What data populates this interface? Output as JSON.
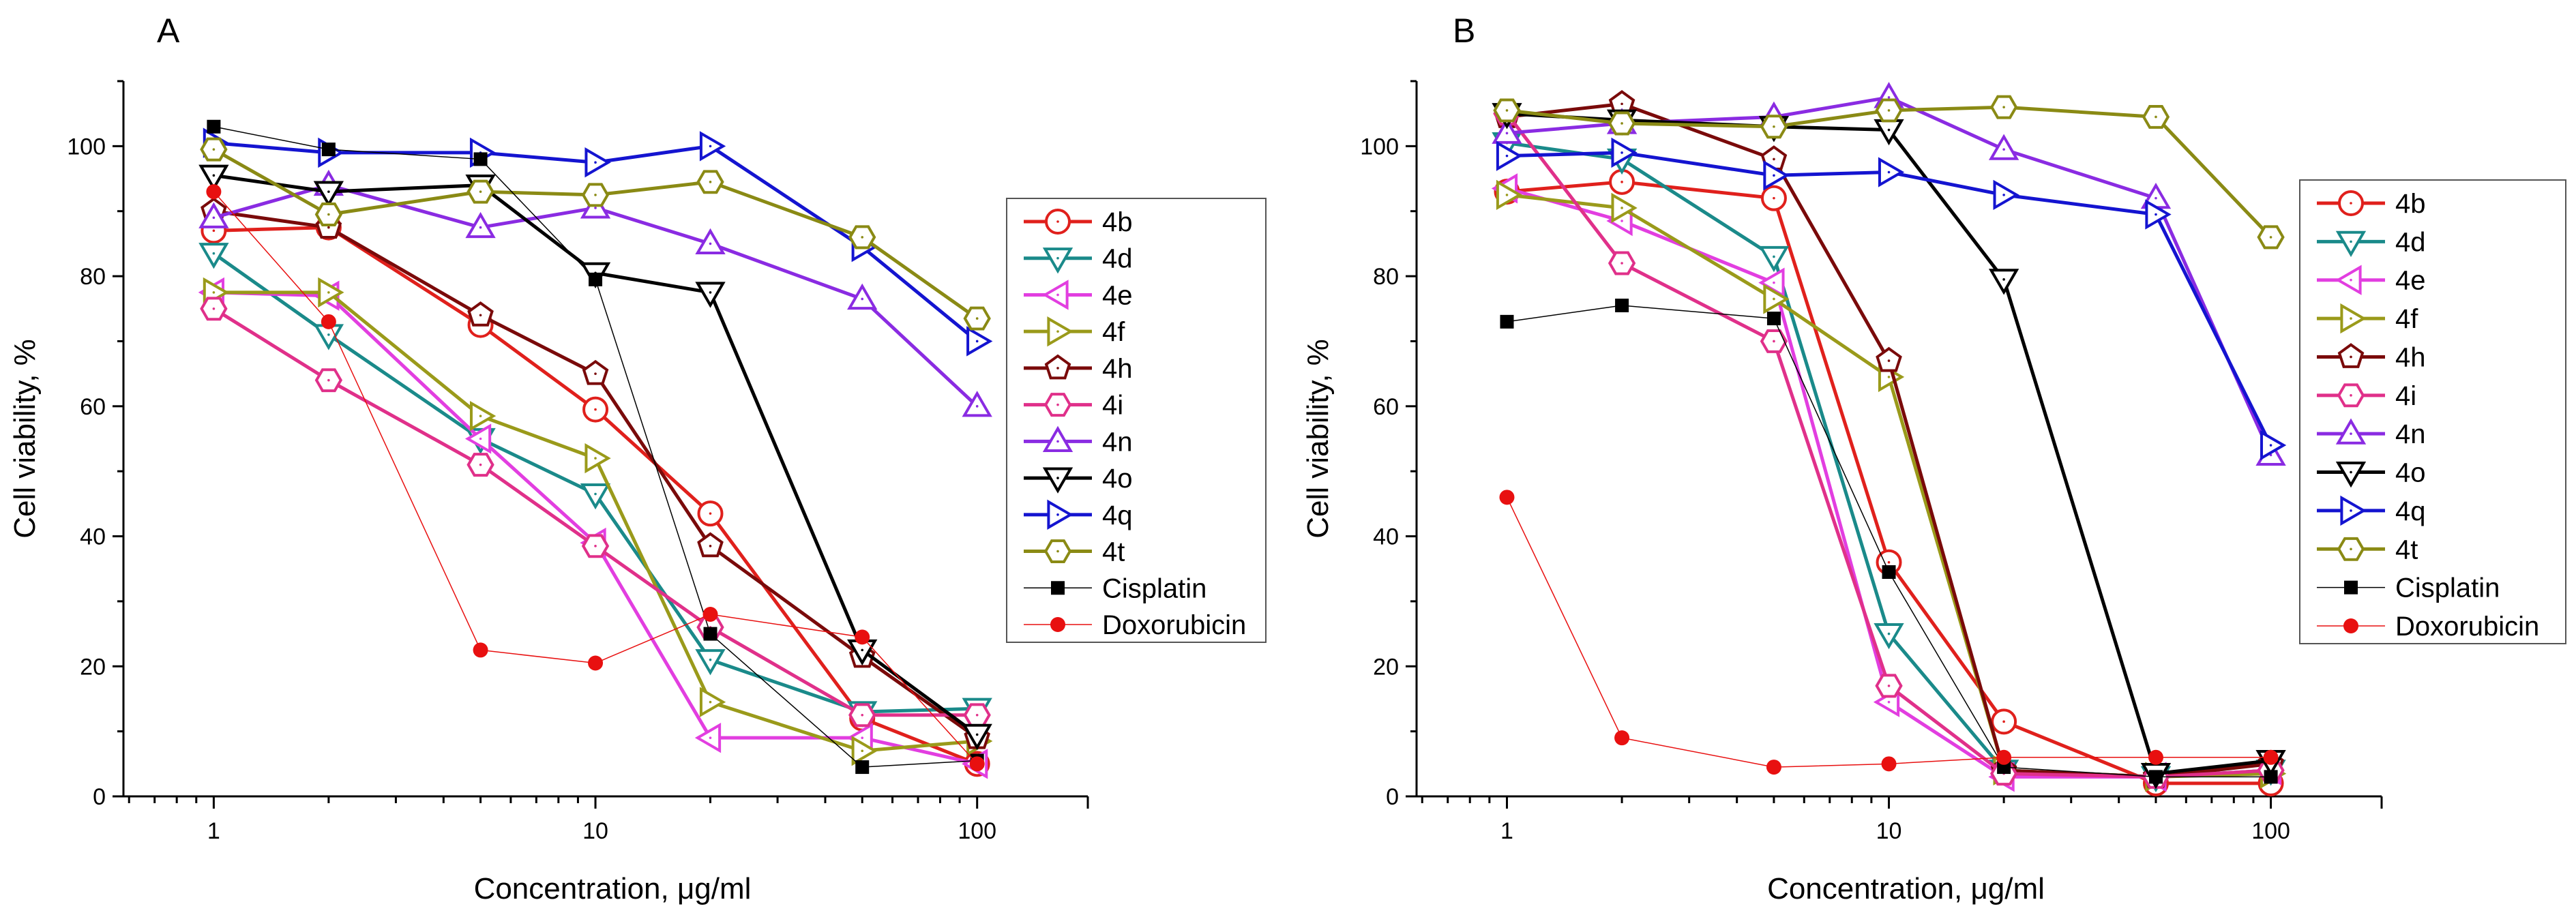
{
  "chart_data": [
    {
      "type": "line",
      "panel": "A",
      "xlabel": "Concentration, μg/ml",
      "ylabel": "Cell viability, %",
      "xscale": "log",
      "xlim": [
        0.58,
        195
      ],
      "ylim": [
        0,
        110
      ],
      "xticks": [
        1,
        10,
        100
      ],
      "xtick_labels": [
        "1",
        "10",
        "100"
      ],
      "yticks": [
        0,
        20,
        40,
        60,
        80,
        100
      ],
      "ytick_labels": [
        "0",
        "20",
        "40",
        "60",
        "80",
        "100"
      ],
      "legend_position": "right",
      "x": [
        1,
        2,
        5,
        10,
        20,
        50,
        100
      ],
      "series": [
        {
          "name": "4b",
          "color": "#e0201c",
          "marker": "circle",
          "values": [
            87,
            87.5,
            72.5,
            59.5,
            43.5,
            12,
            5
          ]
        },
        {
          "name": "4d",
          "color": "#1a8a8a",
          "marker": "triangle-down",
          "values": [
            83.5,
            71,
            55,
            46.5,
            21,
            13,
            13.5
          ]
        },
        {
          "name": "4e",
          "color": "#e23ee0",
          "marker": "triangle-left",
          "values": [
            77.5,
            77,
            55,
            39,
            9,
            9,
            5
          ]
        },
        {
          "name": "4f",
          "color": "#9a9a1a",
          "marker": "triangle-right",
          "values": [
            77.5,
            77.5,
            58.5,
            52,
            14.5,
            7,
            8.5
          ]
        },
        {
          "name": "4h",
          "color": "#7a0a0a",
          "marker": "pentagon",
          "values": [
            90,
            87.5,
            74,
            65,
            38.5,
            21.5,
            9
          ]
        },
        {
          "name": "4i",
          "color": "#e0308a",
          "marker": "hexagon",
          "values": [
            75,
            64,
            51,
            38.5,
            26,
            12.5,
            12.5
          ]
        },
        {
          "name": "4n",
          "color": "#8a2be2",
          "marker": "triangle-up",
          "values": [
            89,
            94,
            87.5,
            90.5,
            85,
            76.5,
            60
          ]
        },
        {
          "name": "4o",
          "color": "#000000",
          "marker": "triangle-down",
          "values": [
            95.5,
            93,
            94,
            80.5,
            77.5,
            22.5,
            9.5
          ]
        },
        {
          "name": "4q",
          "color": "#1414d0",
          "marker": "triangle-right",
          "values": [
            100.5,
            99,
            99,
            97.5,
            100,
            84.5,
            70
          ]
        },
        {
          "name": "4t",
          "color": "#8a8a14",
          "marker": "hexagon",
          "values": [
            99.5,
            89.5,
            93,
            92.5,
            94.5,
            86,
            73.5
          ]
        },
        {
          "name": "Cisplatin",
          "color": "#000000",
          "marker": "square-filled",
          "thin": true,
          "values": [
            103,
            99.5,
            98,
            79.5,
            25,
            4.5,
            5.5
          ]
        },
        {
          "name": "Doxorubicin",
          "color": "#e81010",
          "marker": "circle-filled",
          "thin": true,
          "values": [
            93,
            73,
            22.5,
            20.5,
            28,
            24.5,
            5
          ]
        }
      ]
    },
    {
      "type": "line",
      "panel": "B",
      "xlabel": "Concentration, μg/ml",
      "ylabel": "Cell viability, %",
      "xscale": "log",
      "xlim": [
        0.58,
        195
      ],
      "ylim": [
        0,
        110
      ],
      "xticks": [
        1,
        10,
        100
      ],
      "xtick_labels": [
        "1",
        "10",
        "100"
      ],
      "yticks": [
        0,
        20,
        40,
        60,
        80,
        100
      ],
      "ytick_labels": [
        "0",
        "20",
        "40",
        "60",
        "80",
        "100"
      ],
      "legend_position": "right",
      "x": [
        1,
        2,
        5,
        10,
        20,
        50,
        100
      ],
      "series": [
        {
          "name": "4b",
          "color": "#e0201c",
          "marker": "circle",
          "values": [
            93,
            94.5,
            92,
            36,
            11.5,
            2,
            2
          ]
        },
        {
          "name": "4d",
          "color": "#1a8a8a",
          "marker": "triangle-down",
          "values": [
            100.5,
            98,
            83,
            25,
            4,
            3,
            4
          ]
        },
        {
          "name": "4e",
          "color": "#e23ee0",
          "marker": "triangle-left",
          "values": [
            93.5,
            88.5,
            79,
            14.5,
            3,
            3,
            4
          ]
        },
        {
          "name": "4f",
          "color": "#9a9a1a",
          "marker": "triangle-right",
          "values": [
            92.5,
            90.5,
            76.5,
            64.5,
            4,
            3,
            3.5
          ]
        },
        {
          "name": "4h",
          "color": "#7a0a0a",
          "marker": "pentagon",
          "values": [
            104.5,
            106.5,
            98,
            67,
            4,
            3,
            5
          ]
        },
        {
          "name": "4i",
          "color": "#e0308a",
          "marker": "hexagon",
          "values": [
            105,
            82,
            70,
            17,
            3.5,
            3,
            4
          ]
        },
        {
          "name": "4n",
          "color": "#8a2be2",
          "marker": "triangle-up",
          "values": [
            102,
            103.5,
            104.5,
            107.5,
            99.5,
            92,
            52.5
          ]
        },
        {
          "name": "4o",
          "color": "#000000",
          "marker": "triangle-down",
          "values": [
            105,
            104,
            103,
            102.5,
            79.5,
            3.5,
            5.5
          ]
        },
        {
          "name": "4q",
          "color": "#1414d0",
          "marker": "triangle-right",
          "values": [
            98.5,
            99,
            95.5,
            96,
            92.5,
            89.5,
            54
          ]
        },
        {
          "name": "4t",
          "color": "#8a8a14",
          "marker": "hexagon",
          "values": [
            105.5,
            103.5,
            103,
            105.5,
            106,
            104.5,
            86
          ]
        },
        {
          "name": "Cisplatin",
          "color": "#000000",
          "marker": "square-filled",
          "thin": true,
          "values": [
            73,
            75.5,
            73.5,
            34.5,
            4.5,
            3,
            3
          ]
        },
        {
          "name": "Doxorubicin",
          "color": "#e81010",
          "marker": "circle-filled",
          "thin": true,
          "values": [
            46,
            9,
            4.5,
            5,
            6,
            6,
            6
          ]
        }
      ]
    }
  ]
}
